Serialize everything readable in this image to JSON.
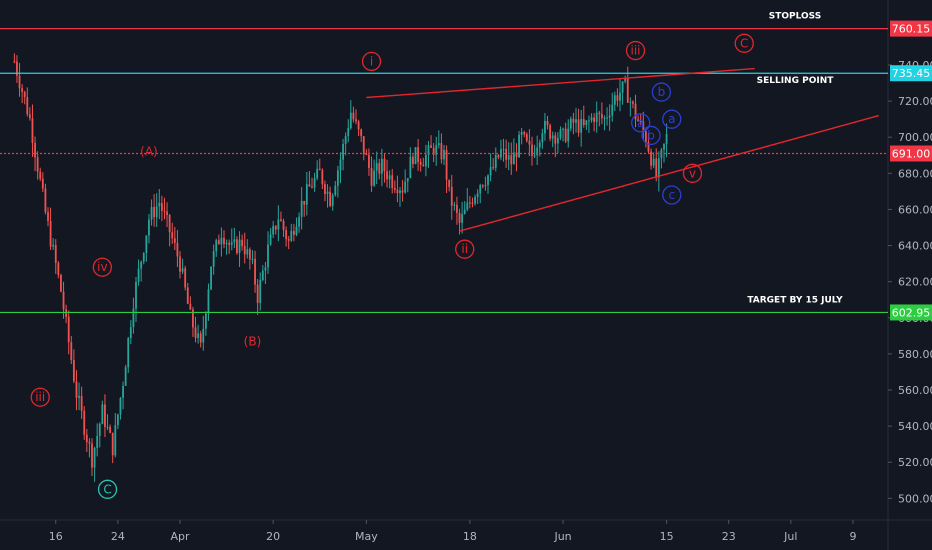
{
  "chart_data": {
    "type": "candlestick",
    "background": "#131722",
    "ylim": [
      488,
      776
    ],
    "xlim": [
      -2,
      168
    ],
    "x_ticks": [
      {
        "label": "16",
        "x": 8
      },
      {
        "label": "24",
        "x": 20
      },
      {
        "label": "Apr",
        "x": 32
      },
      {
        "label": "20",
        "x": 50
      },
      {
        "label": "May",
        "x": 68
      },
      {
        "label": "18",
        "x": 88
      },
      {
        "label": "Jun",
        "x": 106
      },
      {
        "label": "15",
        "x": 126
      },
      {
        "label": "23",
        "x": 138
      },
      {
        "label": "Jul",
        "x": 150
      },
      {
        "label": "9",
        "x": 162
      }
    ],
    "y_ticks": [
      500,
      520,
      540,
      560,
      580,
      600,
      620,
      640,
      660,
      680,
      700,
      720,
      740
    ],
    "candles_anchor_closes": [
      [
        0,
        742
      ],
      [
        3,
        710
      ],
      [
        6,
        658
      ],
      [
        9,
        615
      ],
      [
        12,
        558
      ],
      [
        15,
        522
      ],
      [
        17,
        548
      ],
      [
        19,
        528
      ],
      [
        21,
        565
      ],
      [
        23,
        610
      ],
      [
        26,
        655
      ],
      [
        28,
        664
      ],
      [
        30,
        648
      ],
      [
        32,
        630
      ],
      [
        34,
        600
      ],
      [
        36,
        583
      ],
      [
        38,
        630
      ],
      [
        40,
        648
      ],
      [
        42,
        638
      ],
      [
        44,
        642
      ],
      [
        46,
        628
      ],
      [
        47,
        612
      ],
      [
        49,
        638
      ],
      [
        51,
        656
      ],
      [
        53,
        642
      ],
      [
        55,
        660
      ],
      [
        57,
        672
      ],
      [
        59,
        680
      ],
      [
        61,
        666
      ],
      [
        63,
        688
      ],
      [
        65,
        714
      ],
      [
        67,
        698
      ],
      [
        69,
        678
      ],
      [
        71,
        684
      ],
      [
        73,
        676
      ],
      [
        75,
        672
      ],
      [
        77,
        690
      ],
      [
        79,
        688
      ],
      [
        81,
        694
      ],
      [
        83,
        690
      ],
      [
        84,
        668
      ],
      [
        86,
        652
      ],
      [
        88,
        664
      ],
      [
        90,
        675
      ],
      [
        92,
        680
      ],
      [
        94,
        692
      ],
      [
        96,
        686
      ],
      [
        98,
        700
      ],
      [
        100,
        690
      ],
      [
        102,
        706
      ],
      [
        104,
        702
      ],
      [
        106,
        700
      ],
      [
        108,
        708
      ],
      [
        110,
        705
      ],
      [
        112,
        712
      ],
      [
        114,
        710
      ],
      [
        116,
        722
      ],
      [
        118,
        728
      ],
      [
        120,
        712
      ],
      [
        122,
        700
      ],
      [
        124,
        678
      ],
      [
        126,
        700
      ]
    ],
    "horizontal_lines": [
      {
        "value": 760.15,
        "label": "760.15",
        "color": "#f23645",
        "note": "STOPLOSS",
        "style": "solid"
      },
      {
        "value": 735.45,
        "label": "735.45",
        "color": "#22d3e4",
        "note": "SELLING POINT",
        "style": "solid"
      },
      {
        "value": 691.0,
        "label": "691.00",
        "color": "#f23645",
        "note": "",
        "style": "dotted"
      },
      {
        "value": 602.95,
        "label": "602.95",
        "color": "#2ecc40",
        "note": "TARGET BY 15 JULY",
        "style": "solid"
      }
    ],
    "trendlines": [
      {
        "x1": 68,
        "y1": 722,
        "x2": 143,
        "y2": 738,
        "color": "#e3262e"
      },
      {
        "x1": 86,
        "y1": 648,
        "x2": 167,
        "y2": 712,
        "color": "#e3262e"
      }
    ],
    "wave_labels": [
      {
        "text": "(A)",
        "x": 26,
        "y": 692,
        "color": "red",
        "circled": false
      },
      {
        "text": "(B)",
        "x": 46,
        "y": 587,
        "color": "red",
        "circled": false
      },
      {
        "text": "iv",
        "x": 17,
        "y": 628,
        "color": "red",
        "circled": true
      },
      {
        "text": "iii",
        "x": 5,
        "y": 556,
        "color": "red",
        "circled": true
      },
      {
        "text": "C",
        "x": 18,
        "y": 505,
        "color": "teal",
        "circled": true
      },
      {
        "text": "i",
        "x": 69,
        "y": 742,
        "color": "red",
        "circled": true
      },
      {
        "text": "ii",
        "x": 87,
        "y": 638,
        "color": "red",
        "circled": true
      },
      {
        "text": "iii",
        "x": 120,
        "y": 748,
        "color": "red",
        "circled": true
      },
      {
        "text": "C",
        "x": 141,
        "y": 752,
        "color": "red",
        "circled": true
      },
      {
        "text": "v",
        "x": 131,
        "y": 680,
        "color": "red",
        "circled": true
      },
      {
        "text": "b",
        "x": 125,
        "y": 725,
        "color": "blue",
        "circled": true
      },
      {
        "text": "a",
        "x": 121,
        "y": 708,
        "color": "blue",
        "circled": true
      },
      {
        "text": "b",
        "x": 123,
        "y": 701,
        "color": "blue",
        "circled": true
      },
      {
        "text": "a",
        "x": 127,
        "y": 710,
        "color": "blue",
        "circled": true
      },
      {
        "text": "c",
        "x": 127,
        "y": 668,
        "color": "blue",
        "circled": true
      }
    ]
  }
}
